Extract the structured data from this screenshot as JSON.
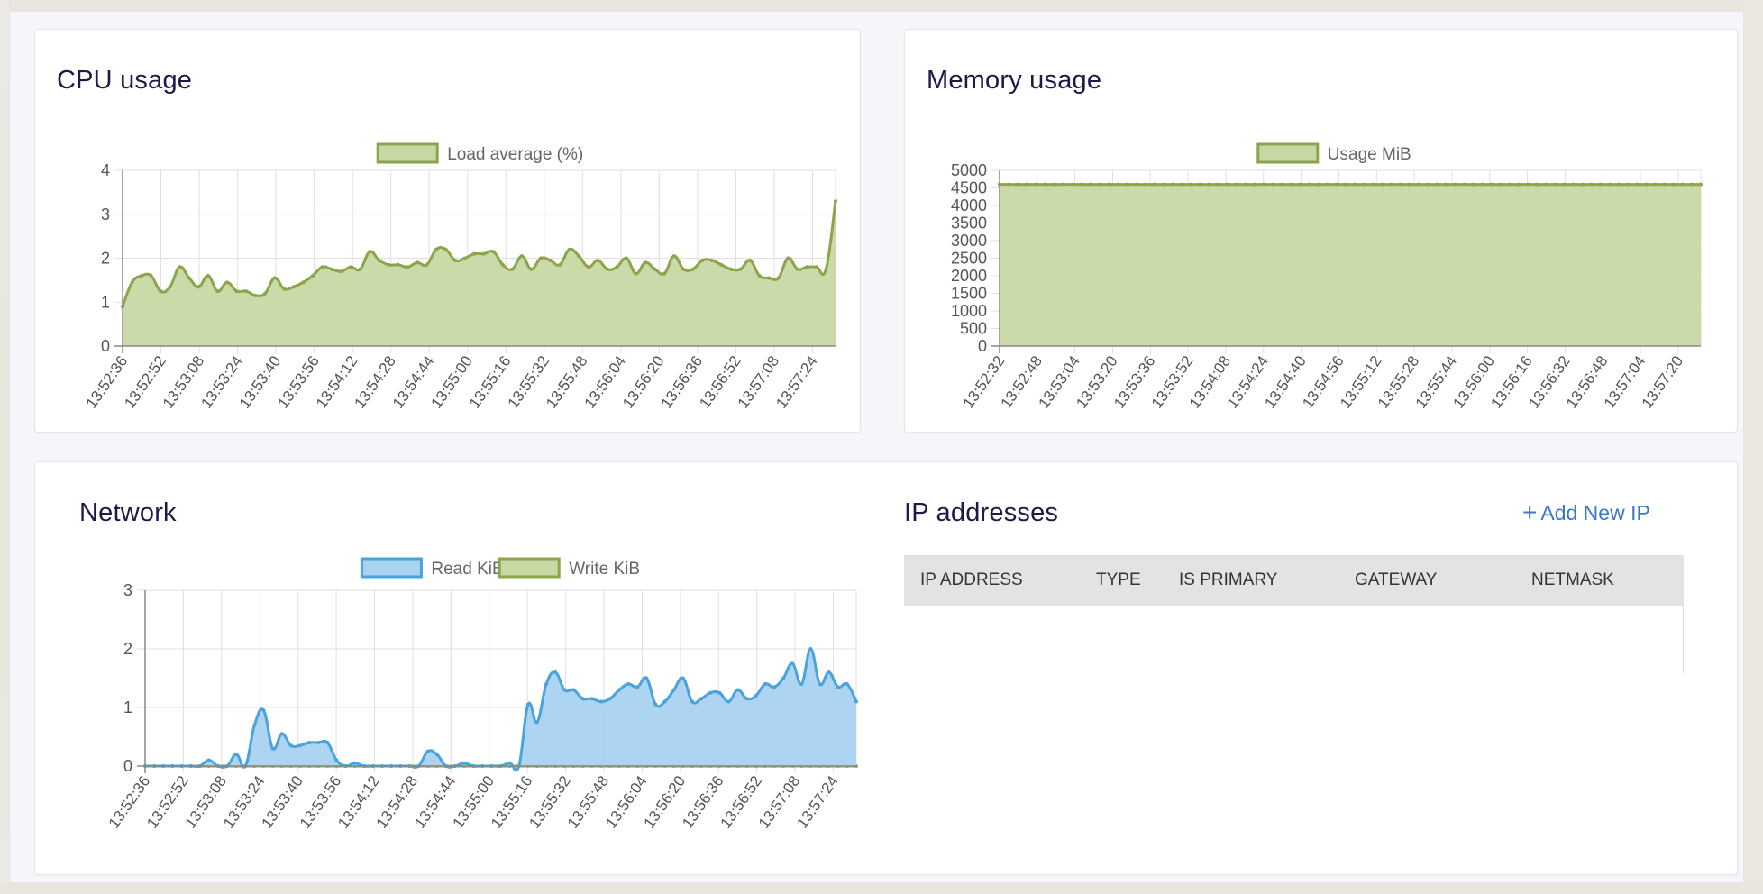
{
  "cpu": {
    "title": "CPU usage",
    "chart_data": {
      "type": "area",
      "legend": [
        "Load average (%)"
      ],
      "legend_position": "top",
      "grid": true,
      "ylim": [
        0,
        4
      ],
      "yticks": [
        0,
        1,
        2,
        3,
        4
      ],
      "xticks": [
        "13:52:36",
        "13:52:52",
        "13:53:08",
        "13:53:24",
        "13:53:40",
        "13:53:56",
        "13:54:12",
        "13:54:28",
        "13:54:44",
        "13:55:00",
        "13:55:16",
        "13:55:32",
        "13:55:48",
        "13:56:04",
        "13:56:20",
        "13:56:36",
        "13:56:52",
        "13:57:08",
        "13:57:24"
      ],
      "series": [
        {
          "name": "Load average (%)",
          "color": "#8ca54b",
          "fill": "#c7d8a3",
          "values": [
            0.9,
            1.45,
            1.6,
            1.6,
            1.25,
            1.35,
            1.8,
            1.55,
            1.35,
            1.6,
            1.25,
            1.45,
            1.25,
            1.25,
            1.15,
            1.2,
            1.55,
            1.3,
            1.35,
            1.45,
            1.6,
            1.8,
            1.75,
            1.7,
            1.8,
            1.75,
            2.15,
            1.95,
            1.85,
            1.85,
            1.8,
            1.9,
            1.85,
            2.2,
            2.2,
            1.95,
            2.0,
            2.1,
            2.1,
            2.15,
            1.85,
            1.75,
            2.05,
            1.75,
            2.0,
            1.95,
            1.85,
            2.2,
            2.05,
            1.8,
            1.95,
            1.75,
            1.8,
            2.0,
            1.65,
            1.9,
            1.75,
            1.65,
            2.05,
            1.75,
            1.75,
            1.95,
            1.95,
            1.85,
            1.75,
            1.75,
            1.95,
            1.6,
            1.55,
            1.55,
            2.0,
            1.75,
            1.8,
            1.8,
            1.75,
            3.3
          ]
        }
      ]
    }
  },
  "memory": {
    "title": "Memory usage",
    "chart_data": {
      "type": "area",
      "legend": [
        "Usage MiB"
      ],
      "legend_position": "top",
      "grid": true,
      "ylim": [
        0,
        5000
      ],
      "yticks": [
        0,
        500,
        1000,
        1500,
        2000,
        2500,
        3000,
        3500,
        4000,
        4500,
        5000
      ],
      "xticks": [
        "13:52:32",
        "13:52:48",
        "13:53:04",
        "13:53:20",
        "13:53:36",
        "13:53:52",
        "13:54:08",
        "13:54:24",
        "13:54:40",
        "13:54:56",
        "13:55:12",
        "13:55:28",
        "13:55:44",
        "13:56:00",
        "13:56:16",
        "13:56:32",
        "13:56:48",
        "13:57:04",
        "13:57:20"
      ],
      "series": [
        {
          "name": "Usage MiB",
          "color": "#8ca54b",
          "fill": "#c7d8a3",
          "values": [
            4600,
            4600,
            4600,
            4600,
            4600,
            4600,
            4600,
            4600,
            4600,
            4600,
            4600,
            4600,
            4600,
            4600,
            4600,
            4600,
            4600,
            4600,
            4600,
            4600,
            4600,
            4600,
            4600,
            4600,
            4600,
            4600,
            4600,
            4600,
            4600,
            4600,
            4600,
            4600,
            4600,
            4600,
            4600,
            4600,
            4600,
            4600,
            4600,
            4600,
            4600,
            4600,
            4600,
            4600,
            4600,
            4600,
            4600,
            4600,
            4600,
            4600,
            4600,
            4600,
            4600,
            4600,
            4600,
            4600,
            4600,
            4600,
            4600,
            4600,
            4600,
            4600,
            4600,
            4600,
            4600,
            4600,
            4600,
            4600,
            4600,
            4600,
            4600,
            4600,
            4600,
            4600,
            4600,
            4600,
            4600,
            4600
          ]
        }
      ]
    }
  },
  "network": {
    "title": "Network",
    "chart_data": {
      "type": "area",
      "legend": [
        "Read KiB",
        "Write KiB"
      ],
      "legend_position": "top",
      "grid": true,
      "ylim": [
        0,
        3
      ],
      "yticks": [
        0,
        1,
        2,
        3
      ],
      "xticks": [
        "13:52:36",
        "13:52:52",
        "13:53:08",
        "13:53:24",
        "13:53:40",
        "13:53:56",
        "13:54:12",
        "13:54:28",
        "13:54:44",
        "13:55:00",
        "13:55:16",
        "13:55:32",
        "13:55:48",
        "13:56:04",
        "13:56:20",
        "13:56:36",
        "13:56:52",
        "13:57:08",
        "13:57:24"
      ],
      "series": [
        {
          "name": "Read KiB",
          "color": "#4aa3dc",
          "fill": "#a9d2ef",
          "values": [
            0,
            0,
            0,
            0,
            0,
            0,
            0,
            0.1,
            0,
            0,
            0.2,
            0,
            0.7,
            0.95,
            0.3,
            0.55,
            0.35,
            0.35,
            0.4,
            0.4,
            0.4,
            0.1,
            0,
            0.05,
            0,
            0,
            0,
            0,
            0,
            0,
            0,
            0.25,
            0.2,
            0,
            0,
            0.05,
            0,
            0,
            0,
            0,
            0.05,
            0,
            1.05,
            0.75,
            1.4,
            1.6,
            1.3,
            1.3,
            1.15,
            1.15,
            1.1,
            1.15,
            1.3,
            1.4,
            1.35,
            1.5,
            1.05,
            1.1,
            1.3,
            1.5,
            1.1,
            1.15,
            1.25,
            1.25,
            1.1,
            1.3,
            1.15,
            1.2,
            1.4,
            1.35,
            1.5,
            1.75,
            1.4,
            2.0,
            1.4,
            1.6,
            1.35,
            1.4,
            1.1
          ]
        },
        {
          "name": "Write KiB",
          "color": "#8ca54b",
          "fill": "#c7d8a3",
          "values": [
            0,
            0,
            0,
            0,
            0,
            0,
            0,
            0,
            0,
            0,
            0,
            0,
            0,
            0,
            0,
            0,
            0,
            0,
            0,
            0,
            0,
            0,
            0,
            0,
            0,
            0,
            0,
            0,
            0,
            0,
            0,
            0,
            0,
            0,
            0,
            0,
            0,
            0,
            0,
            0,
            0,
            0,
            0,
            0,
            0,
            0,
            0,
            0,
            0,
            0,
            0,
            0,
            0,
            0,
            0,
            0,
            0,
            0,
            0,
            0,
            0,
            0,
            0,
            0,
            0,
            0,
            0,
            0,
            0,
            0,
            0,
            0,
            0,
            0,
            0,
            0,
            0,
            0,
            0
          ]
        }
      ]
    }
  },
  "ip": {
    "title": "IP addresses",
    "add_label": "Add New IP",
    "columns": [
      "IP ADDRESS",
      "TYPE",
      "IS PRIMARY",
      "GATEWAY",
      "NETMASK"
    ]
  }
}
